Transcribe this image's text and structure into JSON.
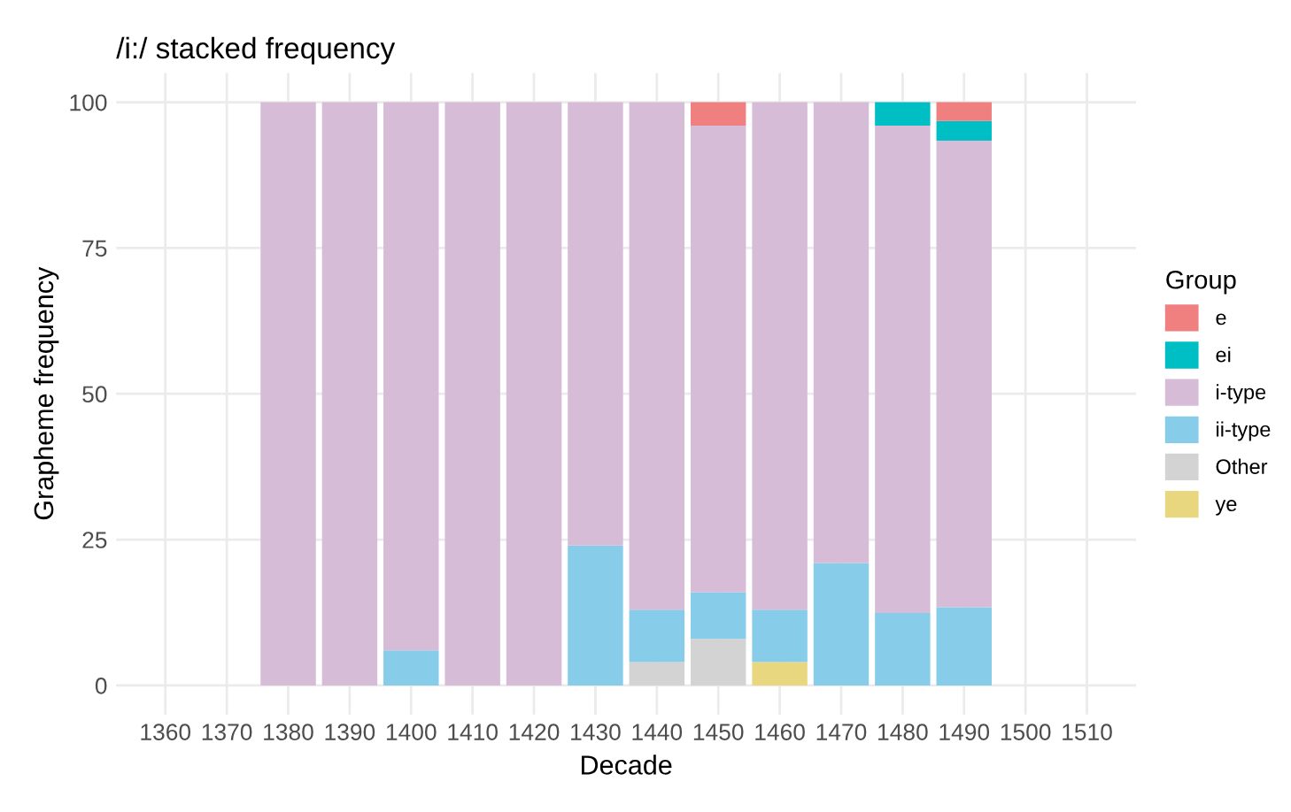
{
  "chart_data": {
    "type": "bar",
    "title": "/i:/ stacked frequency",
    "xlabel": "Decade",
    "ylabel": "Grapheme frequency",
    "legend_title": "Group",
    "x": [
      1380,
      1390,
      1400,
      1410,
      1420,
      1430,
      1440,
      1450,
      1460,
      1470,
      1480,
      1490
    ],
    "stacked": true,
    "series": [
      {
        "name": "ye",
        "color": "#e8d77f",
        "values": [
          0,
          0,
          0,
          0,
          0,
          0,
          0,
          0,
          4,
          0,
          0,
          0
        ]
      },
      {
        "name": "Other",
        "color": "#d3d3d3",
        "values": [
          0,
          0,
          0,
          0,
          0,
          0,
          4,
          8,
          0,
          0,
          0,
          0
        ]
      },
      {
        "name": "ii-type",
        "color": "#87cce8",
        "values": [
          0,
          0,
          6,
          0,
          0,
          24,
          9,
          8,
          9,
          21,
          12.4,
          13.4
        ]
      },
      {
        "name": "i-type",
        "color": "#d7bcd8",
        "values": [
          100,
          100,
          94,
          100,
          100,
          76,
          87,
          80,
          87,
          79,
          83.6,
          80
        ]
      },
      {
        "name": "ei",
        "color": "#00bfc4",
        "values": [
          0,
          0,
          0,
          0,
          0,
          0,
          0,
          0,
          0,
          0,
          4,
          3.4
        ]
      },
      {
        "name": "e",
        "color": "#f08080",
        "values": [
          0,
          0,
          0,
          0,
          0,
          0,
          0,
          4,
          0,
          0,
          0,
          3.2
        ]
      }
    ],
    "xlim": [
      1352,
      1518
    ],
    "xticks": [
      1360,
      1370,
      1380,
      1390,
      1400,
      1410,
      1420,
      1430,
      1440,
      1450,
      1460,
      1470,
      1480,
      1490,
      1500,
      1510
    ],
    "ylim": [
      -5,
      105
    ],
    "yticks": [
      0,
      25,
      50,
      75,
      100
    ],
    "grid": true,
    "legend": "right"
  }
}
